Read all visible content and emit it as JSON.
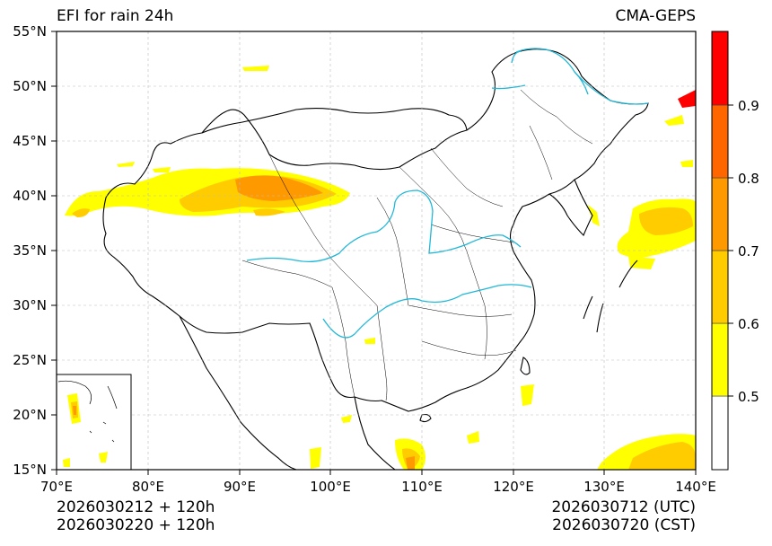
{
  "title_left": "EFI for rain 24h",
  "title_right": "CMA-GEPS",
  "map": {
    "lon_range": [
      70,
      140
    ],
    "lat_range": [
      15,
      55
    ],
    "lon_ticks": [
      "70°E",
      "80°E",
      "90°E",
      "100°E",
      "110°E",
      "120°E",
      "130°E",
      "140°E"
    ],
    "lat_ticks": [
      "15°N",
      "20°N",
      "25°N",
      "30°N",
      "35°N",
      "40°N",
      "45°N",
      "50°N",
      "55°N"
    ],
    "gridlines": "dashed"
  },
  "colorbar": {
    "levels": [
      "0.5",
      "0.6",
      "0.7",
      "0.8",
      "0.9"
    ],
    "colors": [
      "#ffffff",
      "#ffff00",
      "#ffcc00",
      "#ff9900",
      "#ff6600",
      "#ff0000"
    ]
  },
  "footer": {
    "init_utc": "2026030212 + 120h",
    "init_cst": "2026030220 + 120h",
    "valid_utc": "2026030712 (UTC)",
    "valid_cst": "2026030720 (CST)"
  },
  "colors": {
    "river": "#20b8d8",
    "border": "#000000"
  }
}
